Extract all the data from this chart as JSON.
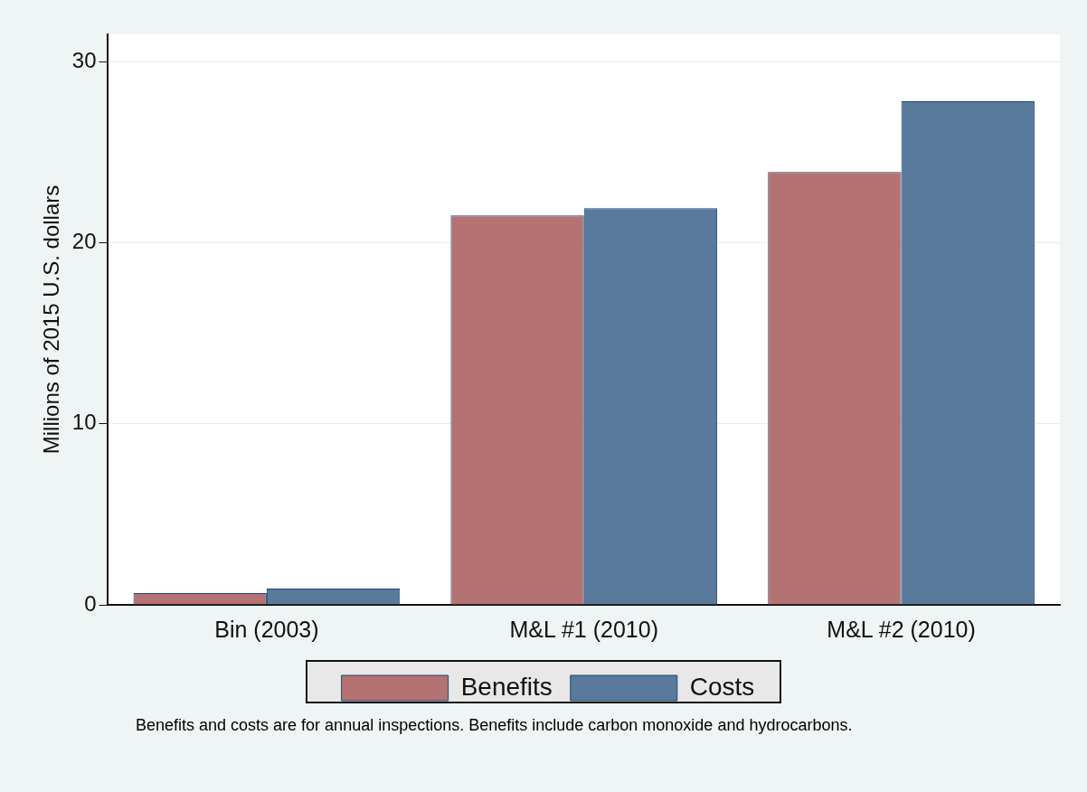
{
  "chart_data": {
    "type": "bar",
    "ylabel": "Millions of 2015 U.S. dollars",
    "categories": [
      "Bin (2003)",
      "M&L #1 (2010)",
      "M&L #2 (2010)"
    ],
    "series": [
      {
        "name": "Benefits",
        "color": "#b57272",
        "values": [
          0.65,
          21.5,
          23.9
        ]
      },
      {
        "name": "Costs",
        "color": "#5a7a9c",
        "values": [
          0.9,
          21.9,
          27.8
        ]
      }
    ],
    "ylim": [
      0,
      31.5
    ],
    "yticks": [
      0,
      10,
      20,
      30
    ],
    "grid": "y",
    "legend": "bottom",
    "annotations": [
      "Benefits and costs are for annual inspections. Benefits include carbon monoxide and hydrocarbons."
    ]
  }
}
